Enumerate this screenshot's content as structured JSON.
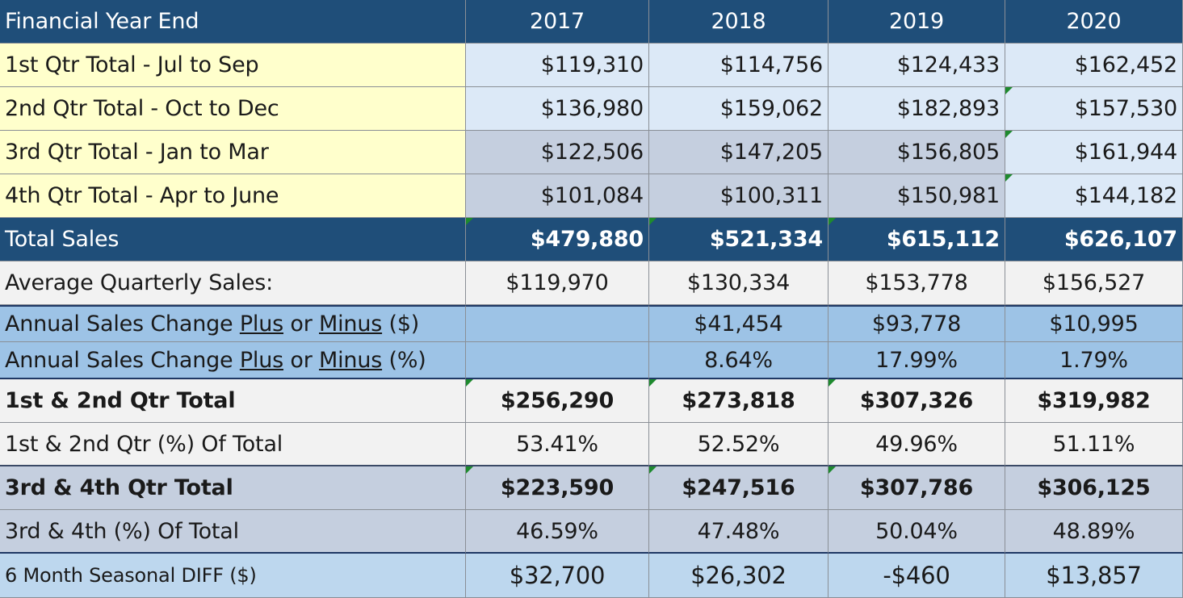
{
  "header": {
    "label": "Financial Year End",
    "years": [
      "2017",
      "2018",
      "2019",
      "2020"
    ]
  },
  "quarters": [
    {
      "label": "1st Qtr Total - Jul to Sep",
      "values": [
        "$119,310",
        "$114,756",
        "$124,433",
        "$162,452"
      ]
    },
    {
      "label": "2nd Qtr Total - Oct to Dec",
      "values": [
        "$136,980",
        "$159,062",
        "$182,893",
        "$157,530"
      ]
    },
    {
      "label": "3rd Qtr Total - Jan to Mar",
      "values": [
        "$122,506",
        "$147,205",
        "$156,805",
        "$161,944"
      ]
    },
    {
      "label": "4th Qtr Total - Apr to June",
      "values": [
        "$101,084",
        "$100,311",
        "$150,981",
        "$144,182"
      ]
    }
  ],
  "total_sales": {
    "label": "Total Sales",
    "values": [
      "$479,880",
      "$521,334",
      "$615,112",
      "$626,107"
    ]
  },
  "average": {
    "label": "Average Quarterly Sales:",
    "values": [
      "$119,970",
      "$130,334",
      "$153,778",
      "$156,527"
    ]
  },
  "change_dollar": {
    "label_pre": "Annual Sales Change ",
    "plus": "Plus",
    "or": " or ",
    "minus": "Minus",
    "label_post": " ($)",
    "values": [
      "",
      "$41,454",
      "$93,778",
      "$10,995"
    ]
  },
  "change_pct": {
    "label_pre": "Annual Sales Change ",
    "plus": "Plus",
    "or": " or ",
    "minus": "Minus",
    "label_post": " (%)",
    "values": [
      "",
      "8.64%",
      "17.99%",
      "1.79%"
    ]
  },
  "h1_total": {
    "label": "1st & 2nd Qtr Total",
    "values": [
      "$256,290",
      "$273,818",
      "$307,326",
      "$319,982"
    ]
  },
  "h1_pct": {
    "label": "1st & 2nd Qtr (%) Of Total",
    "values": [
      "53.41%",
      "52.52%",
      "49.96%",
      "51.11%"
    ]
  },
  "h2_total": {
    "label": "3rd & 4th Qtr Total",
    "values": [
      "$223,590",
      "$247,516",
      "$307,786",
      "$306,125"
    ]
  },
  "h2_pct": {
    "label": "3rd & 4th (%) Of Total",
    "values": [
      "46.59%",
      "47.48%",
      "50.04%",
      "48.89%"
    ]
  },
  "seasonal": {
    "label": "6 Month Seasonal DIFF ($)",
    "values": [
      "$32,700",
      "$26,302",
      "-$460",
      "$13,857"
    ]
  },
  "colors": {
    "header": "#1f4e79",
    "label_yellow": "#ffffcc",
    "light_blue": "#dce9f7",
    "grey_blue": "#c5cfdf",
    "mid_blue": "#9dc3e6",
    "error_marker": "#1e8a2e"
  }
}
